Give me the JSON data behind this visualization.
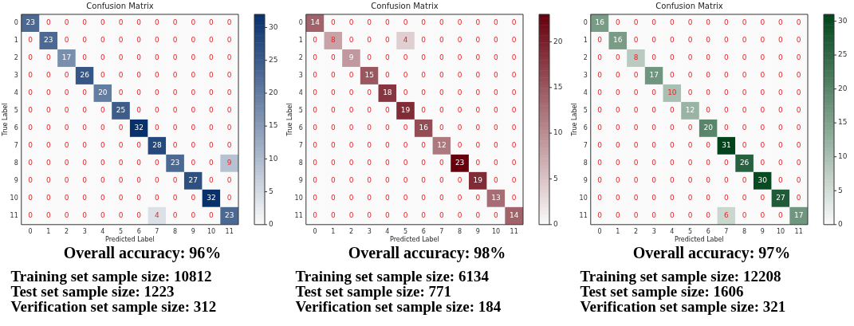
{
  "chart_data": [
    {
      "type": "heatmap",
      "title": "Confusion Matrix",
      "xlabel": "Predicted Label",
      "ylabel": "True Label",
      "color": "#08306b",
      "data_labels": true,
      "categories": [
        "0",
        "1",
        "2",
        "3",
        "4",
        "5",
        "6",
        "7",
        "8",
        "9",
        "10",
        "11"
      ],
      "y_categories": [
        "0",
        "1",
        "2",
        "3",
        "4",
        "5",
        "6",
        "7",
        "8",
        "9",
        "10",
        "11"
      ],
      "cells": [
        [
          23,
          0,
          0,
          0,
          0,
          0,
          0,
          0,
          0,
          0,
          0,
          0
        ],
        [
          0,
          23,
          0,
          0,
          0,
          0,
          0,
          0,
          0,
          0,
          0,
          0
        ],
        [
          0,
          0,
          17,
          0,
          0,
          0,
          0,
          0,
          0,
          0,
          0,
          0
        ],
        [
          0,
          0,
          0,
          26,
          0,
          0,
          0,
          0,
          0,
          0,
          0,
          0
        ],
        [
          0,
          0,
          0,
          0,
          20,
          0,
          0,
          0,
          0,
          0,
          0,
          0
        ],
        [
          0,
          0,
          0,
          0,
          0,
          25,
          0,
          0,
          0,
          0,
          0,
          0
        ],
        [
          0,
          0,
          0,
          0,
          0,
          0,
          32,
          0,
          0,
          0,
          0,
          0
        ],
        [
          0,
          0,
          0,
          0,
          0,
          0,
          0,
          28,
          0,
          0,
          0,
          0
        ],
        [
          0,
          0,
          0,
          0,
          0,
          0,
          0,
          0,
          23,
          0,
          0,
          9
        ],
        [
          0,
          0,
          0,
          0,
          0,
          0,
          0,
          0,
          0,
          27,
          0,
          0
        ],
        [
          0,
          0,
          0,
          0,
          0,
          0,
          0,
          0,
          0,
          0,
          32,
          0
        ],
        [
          0,
          0,
          0,
          0,
          0,
          0,
          0,
          4,
          0,
          0,
          0,
          23
        ]
      ],
      "clim": [
        0,
        32
      ],
      "cticks": [
        0,
        5,
        10,
        15,
        20,
        25,
        30
      ],
      "annotations": [
        "Overall accuracy: 96%",
        "Training set sample size: 10812",
        "Test set sample size: 1223",
        "Verification set sample size: 312"
      ]
    },
    {
      "type": "heatmap",
      "title": "Confusion Matrix",
      "xlabel": "Predicted Label",
      "ylabel": "True Label",
      "color": "#67000d",
      "data_labels": true,
      "categories": [
        "0",
        "1",
        "2",
        "3",
        "4",
        "5",
        "6",
        "7",
        "8",
        "9",
        "10",
        "11"
      ],
      "y_categories": [
        "0",
        "1",
        "2",
        "3",
        "4",
        "5",
        "6",
        "7",
        "8",
        "9",
        "10",
        "11"
      ],
      "cells": [
        [
          14,
          0,
          0,
          0,
          0,
          0,
          0,
          0,
          0,
          0,
          0,
          0
        ],
        [
          0,
          8,
          0,
          0,
          0,
          4,
          0,
          0,
          0,
          0,
          0,
          0
        ],
        [
          0,
          0,
          9,
          0,
          0,
          0,
          0,
          0,
          0,
          0,
          0,
          0
        ],
        [
          0,
          0,
          0,
          15,
          0,
          0,
          0,
          0,
          0,
          0,
          0,
          0
        ],
        [
          0,
          0,
          0,
          0,
          18,
          0,
          0,
          0,
          0,
          0,
          0,
          0
        ],
        [
          0,
          0,
          0,
          0,
          0,
          19,
          0,
          0,
          0,
          0,
          0,
          0
        ],
        [
          0,
          0,
          0,
          0,
          0,
          0,
          16,
          0,
          0,
          0,
          0,
          0
        ],
        [
          0,
          0,
          0,
          0,
          0,
          0,
          0,
          12,
          0,
          0,
          0,
          0
        ],
        [
          0,
          0,
          0,
          0,
          0,
          0,
          0,
          0,
          23,
          0,
          0,
          0
        ],
        [
          0,
          0,
          0,
          0,
          0,
          0,
          0,
          0,
          0,
          19,
          0,
          0
        ],
        [
          0,
          0,
          0,
          0,
          0,
          0,
          0,
          0,
          0,
          0,
          13,
          0
        ],
        [
          0,
          0,
          0,
          0,
          0,
          0,
          0,
          0,
          0,
          0,
          0,
          14
        ]
      ],
      "clim": [
        0,
        23
      ],
      "cticks": [
        0,
        5,
        10,
        15,
        20
      ],
      "annotations": [
        "Overall accuracy: 98%",
        "Training set sample size: 6134",
        "Test set sample size: 771",
        "Verification set sample size: 184"
      ]
    },
    {
      "type": "heatmap",
      "title": "Confusion Matrix",
      "xlabel": "Predicted Label",
      "ylabel": "True Label",
      "color": "#00441b",
      "data_labels": true,
      "categories": [
        "0",
        "1",
        "2",
        "3",
        "4",
        "5",
        "6",
        "7",
        "8",
        "9",
        "10",
        "11"
      ],
      "y_categories": [
        "0",
        "1",
        "2",
        "3",
        "4",
        "5",
        "6",
        "7",
        "8",
        "9",
        "10",
        "11"
      ],
      "cells": [
        [
          16,
          0,
          0,
          0,
          0,
          0,
          0,
          0,
          0,
          0,
          0,
          0
        ],
        [
          0,
          16,
          0,
          0,
          0,
          0,
          0,
          0,
          0,
          0,
          0,
          0
        ],
        [
          0,
          0,
          8,
          0,
          0,
          0,
          0,
          0,
          0,
          0,
          0,
          0
        ],
        [
          0,
          0,
          0,
          17,
          0,
          0,
          0,
          0,
          0,
          0,
          0,
          0
        ],
        [
          0,
          0,
          0,
          0,
          10,
          0,
          0,
          0,
          0,
          0,
          0,
          0
        ],
        [
          0,
          0,
          0,
          0,
          0,
          12,
          0,
          0,
          0,
          0,
          0,
          0
        ],
        [
          0,
          0,
          0,
          0,
          0,
          0,
          20,
          0,
          0,
          0,
          0,
          0
        ],
        [
          0,
          0,
          0,
          0,
          0,
          0,
          0,
          31,
          0,
          0,
          0,
          0
        ],
        [
          0,
          0,
          0,
          0,
          0,
          0,
          0,
          0,
          26,
          0,
          0,
          0
        ],
        [
          0,
          0,
          0,
          0,
          0,
          0,
          0,
          0,
          0,
          30,
          0,
          0
        ],
        [
          0,
          0,
          0,
          0,
          0,
          0,
          0,
          0,
          0,
          0,
          27,
          0
        ],
        [
          0,
          0,
          0,
          0,
          0,
          0,
          0,
          6,
          0,
          0,
          0,
          17
        ]
      ],
      "clim": [
        0,
        31
      ],
      "cticks": [
        0,
        5,
        10,
        15,
        20,
        25,
        30
      ],
      "annotations": [
        "Overall accuracy: 97%",
        "Training set sample size: 12208",
        "Test set sample size: 1606",
        "Verification set sample size: 321"
      ]
    }
  ]
}
